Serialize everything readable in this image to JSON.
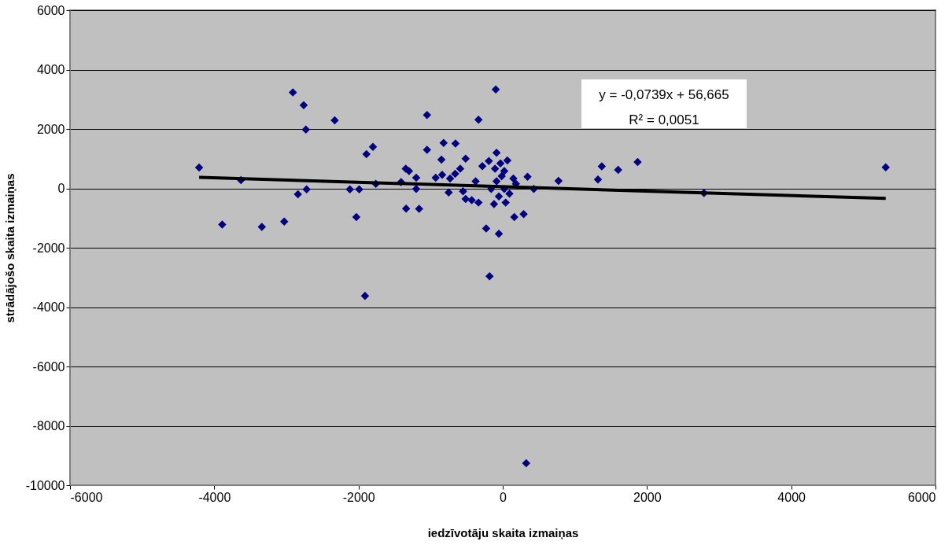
{
  "chart_data": {
    "type": "scatter",
    "xlabel": "iedzīvotāju skaita izmaiņas",
    "ylabel": "strādājošo skaita izmaiņas",
    "xlim": [
      -6000,
      6000
    ],
    "xticks": [
      -6000,
      -4000,
      -2000,
      0,
      2000,
      4000,
      6000
    ],
    "ylim": [
      -10000,
      6000
    ],
    "yticks": [
      -10000,
      -8000,
      -6000,
      -4000,
      -2000,
      0,
      2000,
      4000,
      6000
    ],
    "grid": "y",
    "annotations": [
      "y = -0,0739x + 56,665",
      "R² = 0,0051"
    ],
    "series": [
      {
        "marker": "diamond",
        "color": "#000080",
        "x": [
          -4210,
          -3890,
          -3630,
          -3340,
          -3030,
          -2910,
          -2840,
          -2760,
          -2730,
          -2720,
          -2330,
          -2120,
          -2030,
          -1990,
          -1910,
          -1890,
          -1800,
          -1760,
          -1050,
          -97,
          -336,
          -820,
          -655,
          -1050,
          -850,
          -515,
          -86,
          -1345,
          -1300,
          -1200,
          -1410,
          -1200,
          -930,
          -840,
          -730,
          -660,
          -590,
          -750,
          -550,
          -515,
          -430,
          -336,
          -376,
          -283,
          -193,
          -1340,
          -1160,
          -230,
          -54,
          160,
          290,
          64,
          -32,
          -107,
          21,
          344,
          430,
          147,
          183,
          -14,
          -86,
          21,
          93,
          -121,
          40,
          -161,
          -54,
          1373,
          1600,
          1870,
          1320,
          773,
          2790,
          5310,
          -183,
          325
        ],
        "values": [
          700,
          -1220,
          280,
          -1300,
          -1120,
          3230,
          -200,
          2800,
          1980,
          -30,
          2290,
          -30,
          -970,
          -30,
          -3620,
          1150,
          1400,
          150,
          2470,
          3330,
          2310,
          1530,
          1510,
          1300,
          970,
          1000,
          1200,
          660,
          580,
          360,
          210,
          -20,
          360,
          460,
          330,
          490,
          660,
          -140,
          -100,
          -360,
          -400,
          -480,
          240,
          750,
          920,
          -680,
          -690,
          -1350,
          -1530,
          -970,
          -870,
          940,
          840,
          660,
          580,
          390,
          -20,
          330,
          150,
          410,
          240,
          -20,
          -180,
          -530,
          -480,
          -20,
          -270,
          740,
          620,
          890,
          300,
          250,
          -160,
          710,
          -2960,
          -9260
        ]
      },
      {
        "type": "line",
        "color": "#000000",
        "x": [
          -4210,
          5310
        ],
        "values": [
          370,
          -340
        ]
      }
    ]
  }
}
